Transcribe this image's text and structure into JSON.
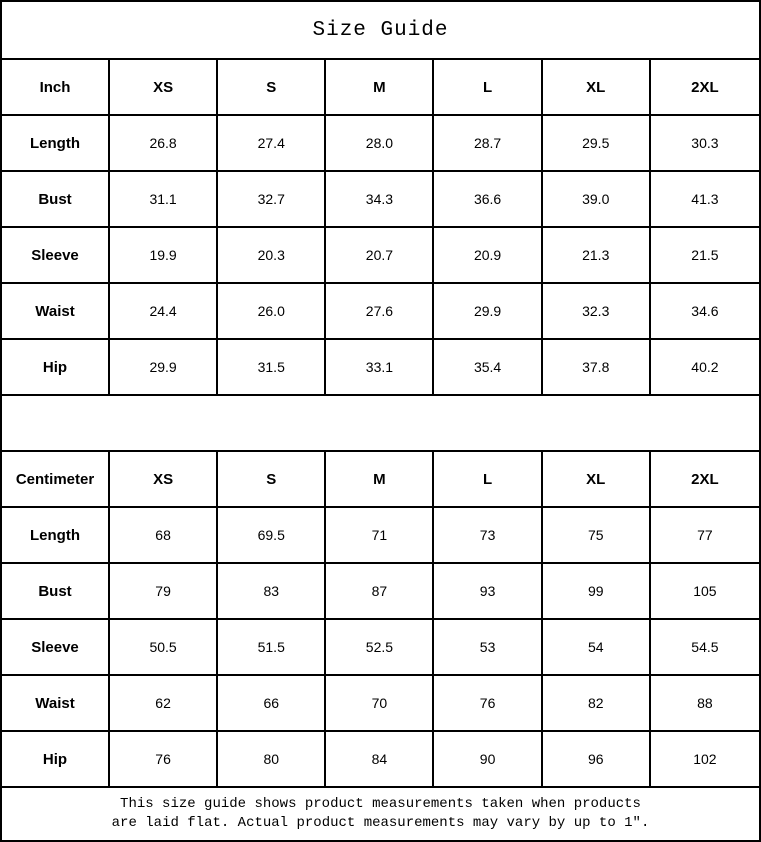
{
  "title": "Size Guide",
  "inch": {
    "unit_label": "Inch",
    "sizes": [
      "XS",
      "S",
      "M",
      "L",
      "XL",
      "2XL"
    ],
    "rows": [
      {
        "label": "Length",
        "values": [
          "26.8",
          "27.4",
          "28.0",
          "28.7",
          "29.5",
          "30.3"
        ]
      },
      {
        "label": "Bust",
        "values": [
          "31.1",
          "32.7",
          "34.3",
          "36.6",
          "39.0",
          "41.3"
        ]
      },
      {
        "label": "Sleeve",
        "values": [
          "19.9",
          "20.3",
          "20.7",
          "20.9",
          "21.3",
          "21.5"
        ]
      },
      {
        "label": "Waist",
        "values": [
          "24.4",
          "26.0",
          "27.6",
          "29.9",
          "32.3",
          "34.6"
        ]
      },
      {
        "label": "Hip",
        "values": [
          "29.9",
          "31.5",
          "33.1",
          "35.4",
          "37.8",
          "40.2"
        ]
      }
    ]
  },
  "cm": {
    "unit_label": "Centimeter",
    "sizes": [
      "XS",
      "S",
      "M",
      "L",
      "XL",
      "2XL"
    ],
    "rows": [
      {
        "label": "Length",
        "values": [
          "68",
          "69.5",
          "71",
          "73",
          "75",
          "77"
        ]
      },
      {
        "label": "Bust",
        "values": [
          "79",
          "83",
          "87",
          "93",
          "99",
          "105"
        ]
      },
      {
        "label": "Sleeve",
        "values": [
          "50.5",
          "51.5",
          "52.5",
          "53",
          "54",
          "54.5"
        ]
      },
      {
        "label": "Waist",
        "values": [
          "62",
          "66",
          "70",
          "76",
          "82",
          "88"
        ]
      },
      {
        "label": "Hip",
        "values": [
          "76",
          "80",
          "84",
          "90",
          "96",
          "102"
        ]
      }
    ]
  },
  "footer": {
    "line1": "This size guide shows product measurements taken when products",
    "line2": "are laid flat. Actual product measurements may vary by up to 1″."
  },
  "colors": {
    "border": "#000000",
    "background": "#ffffff",
    "text": "#000000"
  }
}
